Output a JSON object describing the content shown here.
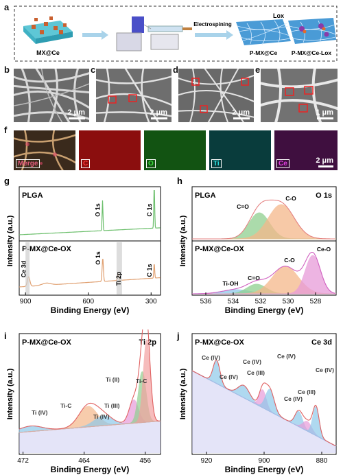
{
  "panel_a": {
    "letter": "a",
    "labels": [
      "MX@Ce",
      "Electrospining",
      "P-MX@Ce",
      "Lox",
      "P-MX@Ce-Lox"
    ]
  },
  "panel_b_e": {
    "letters": [
      "b",
      "c",
      "d",
      "e"
    ],
    "scales": [
      "2 μm",
      "2 μm",
      "2 μm",
      "1 μm"
    ]
  },
  "panel_f": {
    "letter": "f",
    "maps": [
      {
        "label": "Merge",
        "color": "#e05a7a"
      },
      {
        "label": "C",
        "color": "#d8191f"
      },
      {
        "label": "O",
        "color": "#2fb52f"
      },
      {
        "label": "Ti",
        "color": "#27c8c8"
      },
      {
        "label": "Ce",
        "color": "#c236c2"
      }
    ],
    "scale": "2 μm"
  },
  "chart_data": [
    {
      "id": "g",
      "type": "line",
      "letter": "g",
      "xlabel": "Binding Energy (eV)",
      "ylabel": "Intensity (a.u.)",
      "xlim": [
        930,
        255
      ],
      "xticks": [
        900,
        600,
        300
      ],
      "series": [
        {
          "name": "PLGA",
          "color": "#6cbf6c",
          "peaks": [
            {
              "x": 532,
              "label": "O 1s"
            },
            {
              "x": 285,
              "label": "C 1s"
            }
          ]
        },
        {
          "name": "P-MX@Ce-OX",
          "color": "#e0a071",
          "peaks": [
            {
              "x": 885,
              "label": "Ce 3d"
            },
            {
              "x": 531,
              "label": "O 1s"
            },
            {
              "x": 458,
              "label": "Ti 2p"
            },
            {
              "x": 285,
              "label": "C 1s"
            }
          ]
        }
      ]
    },
    {
      "id": "h",
      "type": "area",
      "letter": "h",
      "title": "O 1s",
      "xlabel": "Binding Energy (eV)",
      "ylabel": "Intensity (a.u.)",
      "xlim": [
        537,
        526.5
      ],
      "xticks": [
        536,
        534,
        532,
        530,
        528
      ],
      "series": [
        {
          "name": "PLGA",
          "components": [
            {
              "label": "C=O",
              "x": 532.1,
              "color": "#8fd08f"
            },
            {
              "label": "C-O",
              "x": 530.5,
              "color": "#f5b78a"
            }
          ]
        },
        {
          "name": "P-MX@Ce-OX",
          "components": [
            {
              "label": "Ti-OH",
              "x": 533.8,
              "color": "#8ec9ea"
            },
            {
              "label": "C=O",
              "x": 532.3,
              "color": "#8fd08f"
            },
            {
              "label": "C-O",
              "x": 530.2,
              "color": "#f5b78a"
            },
            {
              "label": "Ce-O",
              "x": 528.2,
              "color": "#e79bd9"
            }
          ]
        }
      ]
    },
    {
      "id": "i",
      "type": "area",
      "letter": "i",
      "sample": "P-MX@Ce-OX",
      "title": "Ti 2p",
      "xlabel": "Binding Energy (eV)",
      "ylabel": "Intensity (a.u.)",
      "xlim": [
        472.5,
        454
      ],
      "xticks": [
        472,
        464,
        456
      ],
      "labels": [
        "Ti (IV)",
        "Ti-C",
        "Ti (IV)",
        "Ti (III)",
        "Ti (II)",
        "Ti-C"
      ]
    },
    {
      "id": "j",
      "type": "area",
      "letter": "j",
      "sample": "P-MX@Ce-OX",
      "title": "Ce 3d",
      "xlabel": "Binding Energy (eV)",
      "ylabel": "Intensity (a.u.)",
      "xlim": [
        925,
        875
      ],
      "xticks": [
        920,
        900,
        880
      ],
      "labels": [
        "Ce (IV)",
        "Ce (IV)",
        "Ce (IV)",
        "Ce (III)",
        "Ce (IV)",
        "Ce (IV)",
        "Ce (III)",
        "Ce (IV)"
      ]
    }
  ]
}
